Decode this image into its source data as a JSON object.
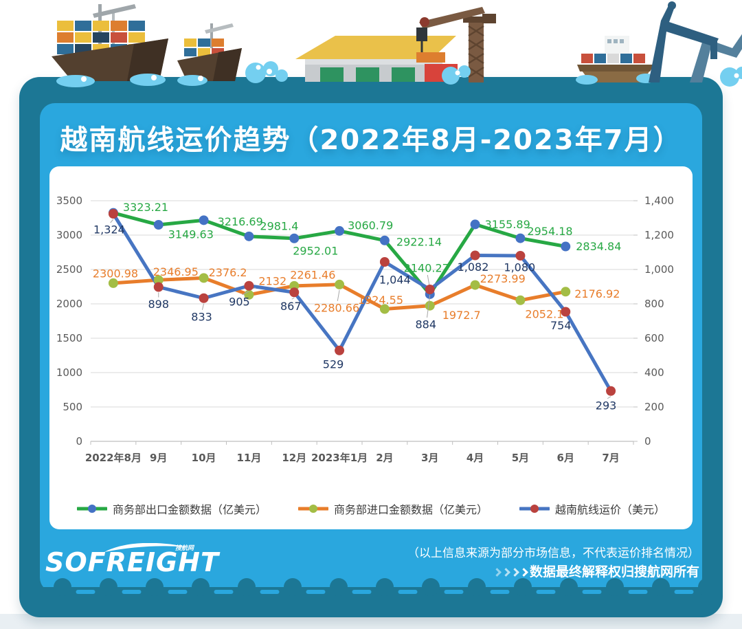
{
  "header": {
    "title": "越南航线运价趋势（2022年8月-2023年7月）"
  },
  "chart_data": {
    "type": "line",
    "title": "越南航线运价趋势（2022年8月-2023年7月）",
    "categories": [
      "2022年8月",
      "9月",
      "10月",
      "11月",
      "12月",
      "2023年1月",
      "2月",
      "3月",
      "4月",
      "5月",
      "6月",
      "7月"
    ],
    "grid": true,
    "legend_position": "bottom",
    "axes": {
      "left": {
        "min": 0,
        "max": 3500,
        "step": 500,
        "ticks": [
          "0",
          "500",
          "1000",
          "1500",
          "2000",
          "2500",
          "3000",
          "3500"
        ]
      },
      "right": {
        "min": 0,
        "max": 1400,
        "step": 200,
        "ticks": [
          "0",
          "200",
          "400",
          "600",
          "800",
          "1,000",
          "1,200",
          "1,400"
        ]
      }
    },
    "series": [
      {
        "name": "商务部出口金额数据（亿美元）",
        "axis": "left",
        "line_color": "#27A844",
        "marker_color": "#4472C4",
        "label_color": "#27A844",
        "values": [
          3323.21,
          3149.63,
          3216.69,
          2981.4,
          2952.01,
          3060.79,
          2922.14,
          2140.27,
          3155.89,
          2954.18,
          2834.84
        ],
        "labels": [
          "3323.21",
          "3149.63",
          "3216.69",
          "2981.4",
          "2952.01",
          "3060.79",
          "2922.14",
          "2140.27",
          "3155.89",
          "2954.18",
          "2834.84"
        ]
      },
      {
        "name": "商务部进口金额数据（亿美元）",
        "axis": "left",
        "line_color": "#E87D2B",
        "marker_color": "#A3BD45",
        "label_color": "#E87D2B",
        "values": [
          2300.98,
          2346.95,
          2376.2,
          2132,
          2261.46,
          2280.66,
          1924.55,
          1972.7,
          2273.99,
          2052.1,
          2176.92
        ],
        "labels": [
          "2300.98",
          "2346.95",
          "2376.2",
          "2132",
          "2261.46",
          "2280.66",
          "1924.55",
          "1972.7",
          "2273.99",
          "2052.1",
          "2176.92"
        ]
      },
      {
        "name": "越南航线运价（美元）",
        "axis": "right",
        "line_color": "#4775C2",
        "marker_color": "#BA423E",
        "label_color": "#203864",
        "values": [
          1324,
          898,
          833,
          905,
          867,
          529,
          1044,
          884,
          1082,
          1080,
          754,
          293
        ],
        "labels": [
          "1,324",
          "898",
          "833",
          "905",
          "867",
          "529",
          "1,044",
          "884",
          "1,082",
          "1,080",
          "754",
          "293"
        ]
      }
    ]
  },
  "footer": {
    "logo_text": "SOFREIGHT",
    "logo_tagline": "搜航网",
    "disclaimer_line1": "（以上信息来源为部分市场信息，不代表运价排名情况）",
    "disclaimer_line2": "数据最终解释权归搜航网所有"
  },
  "colors": {
    "card_teal": "#1C7795",
    "accent_cyan": "#2AA7DE",
    "grid": "#D9D9D9",
    "axis_text": "#595959"
  }
}
